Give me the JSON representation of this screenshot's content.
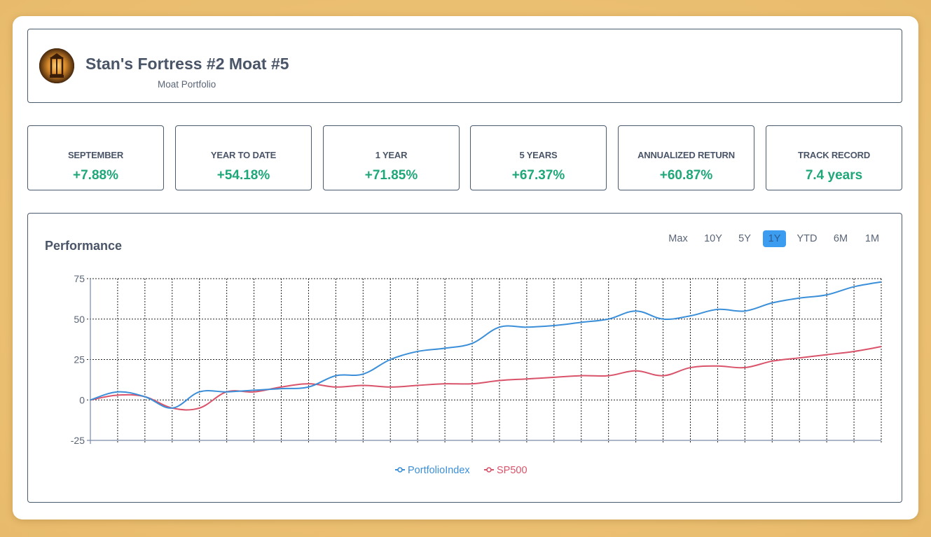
{
  "header": {
    "title": "Stan's Fortress #2 Moat #5",
    "subtitle": "Moat Portfolio"
  },
  "stats": [
    {
      "label": "SEPTEMBER",
      "value": "+7.88%"
    },
    {
      "label": "YEAR TO DATE",
      "value": "+54.18%"
    },
    {
      "label": "1 YEAR",
      "value": "+71.85%"
    },
    {
      "label": "5 YEARS",
      "value": "+67.37%"
    },
    {
      "label": "ANNUALIZED RETURN",
      "value": "+60.87%"
    },
    {
      "label": "TRACK RECORD",
      "value": "7.4 years"
    }
  ],
  "performance": {
    "title": "Performance",
    "ranges": [
      "Max",
      "10Y",
      "5Y",
      "1Y",
      "YTD",
      "6M",
      "1M"
    ],
    "active_range": "1Y"
  },
  "colors": {
    "positive": "#1fa77a",
    "portfolio": "#3b8fd9",
    "sp500": "#d9536a",
    "active_button": "#3b9cf0"
  },
  "chart_data": {
    "type": "line",
    "title": "Performance",
    "xlabel": "",
    "ylabel": "",
    "ylim": [
      -25,
      75
    ],
    "yticks": [
      -25,
      0,
      25,
      50,
      75
    ],
    "grid": true,
    "legend": "bottom-center",
    "x": [
      0,
      1,
      2,
      3,
      4,
      5,
      6,
      7,
      8,
      9,
      10,
      11,
      12,
      13,
      14,
      15,
      16,
      17,
      18,
      19,
      20,
      21,
      22,
      23,
      24,
      25,
      26,
      27,
      28,
      29
    ],
    "series": [
      {
        "name": "PortfolioIndex",
        "values": [
          0,
          5,
          2,
          -5,
          5,
          5,
          6,
          7,
          8,
          15,
          16,
          25,
          30,
          32,
          35,
          45,
          45,
          46,
          48,
          50,
          55,
          50,
          52,
          56,
          55,
          60,
          63,
          65,
          70,
          73
        ]
      },
      {
        "name": "SP500",
        "values": [
          0,
          3,
          2,
          -5,
          -5,
          5,
          5,
          8,
          10,
          8,
          9,
          8,
          9,
          10,
          10,
          12,
          13,
          14,
          15,
          15,
          18,
          15,
          20,
          21,
          20,
          24,
          26,
          28,
          30,
          33
        ]
      }
    ]
  }
}
